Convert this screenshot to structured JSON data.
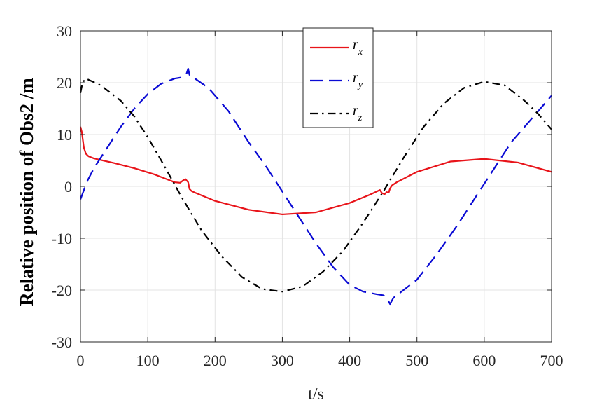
{
  "chart_data": {
    "type": "line",
    "title": "",
    "xlabel": "t/s",
    "ylabel": "Relative position of Obs2 /m",
    "xlim": [
      0,
      700
    ],
    "ylim": [
      -30,
      30
    ],
    "xticks": [
      0,
      100,
      200,
      300,
      400,
      500,
      600,
      700
    ],
    "yticks": [
      -30,
      -20,
      -10,
      0,
      10,
      20,
      30
    ],
    "grid": true,
    "legend_position": "top-center",
    "series": [
      {
        "name": "r_x",
        "legend_main": "r",
        "legend_sub": "x",
        "color": "#e8141a",
        "style": "solid",
        "x": [
          0,
          2,
          5,
          8,
          12,
          20,
          30,
          50,
          80,
          110,
          140,
          148,
          152,
          156,
          160,
          162,
          165,
          170,
          200,
          250,
          300,
          350,
          400,
          430,
          445,
          448,
          452,
          455,
          458,
          460,
          463,
          470,
          500,
          550,
          600,
          650,
          700
        ],
        "y": [
          11.5,
          10.5,
          7.5,
          6.3,
          5.8,
          5.4,
          5.1,
          4.5,
          3.5,
          2.3,
          0.8,
          0.7,
          1.1,
          1.4,
          0.8,
          -0.5,
          -0.9,
          -1.2,
          -2.8,
          -4.5,
          -5.4,
          -5.0,
          -3.2,
          -1.6,
          -0.7,
          -1.3,
          -1.5,
          -1.1,
          -1.2,
          -0.4,
          0.2,
          0.8,
          2.8,
          4.8,
          5.3,
          4.6,
          2.8
        ]
      },
      {
        "name": "r_y",
        "legend_main": "r",
        "legend_sub": "y",
        "color": "#0a0ad4",
        "style": "dashed",
        "x": [
          0,
          10,
          20,
          40,
          60,
          80,
          100,
          120,
          140,
          150,
          157,
          160,
          162,
          165,
          170,
          190,
          220,
          250,
          275,
          300,
          325,
          350,
          375,
          400,
          420,
          440,
          450,
          455,
          460,
          465,
          470,
          500,
          530,
          560,
          600,
          640,
          670,
          700
        ],
        "y": [
          -2.5,
          1.0,
          3.5,
          7.5,
          11.5,
          15.0,
          17.8,
          19.8,
          20.8,
          21.0,
          21.5,
          22.7,
          21.5,
          21.0,
          20.8,
          19.0,
          14.5,
          8.5,
          4.0,
          -1.0,
          -6.0,
          -11.0,
          -15.5,
          -19.0,
          -20.3,
          -20.8,
          -21.0,
          -21.5,
          -22.7,
          -21.5,
          -21.0,
          -18.0,
          -13.0,
          -7.5,
          0.5,
          8.5,
          13.0,
          17.5
        ]
      },
      {
        "name": "r_z",
        "legend_main": "r",
        "legend_sub": "z",
        "color": "#000000",
        "style": "dashdot",
        "x": [
          0,
          3,
          8,
          30,
          60,
          80,
          100,
          120,
          150,
          180,
          210,
          240,
          270,
          300,
          330,
          360,
          390,
          420,
          450,
          480,
          510,
          540,
          570,
          600,
          630,
          660,
          680,
          700
        ],
        "y": [
          18.0,
          20.0,
          20.8,
          19.5,
          16.5,
          13.5,
          9.5,
          5.0,
          -2.0,
          -8.5,
          -13.5,
          -17.5,
          -19.8,
          -20.3,
          -19.3,
          -16.5,
          -12.5,
          -7.0,
          -1.0,
          5.5,
          11.5,
          16.0,
          19.0,
          20.2,
          19.5,
          16.5,
          14.0,
          11.0
        ]
      }
    ]
  }
}
